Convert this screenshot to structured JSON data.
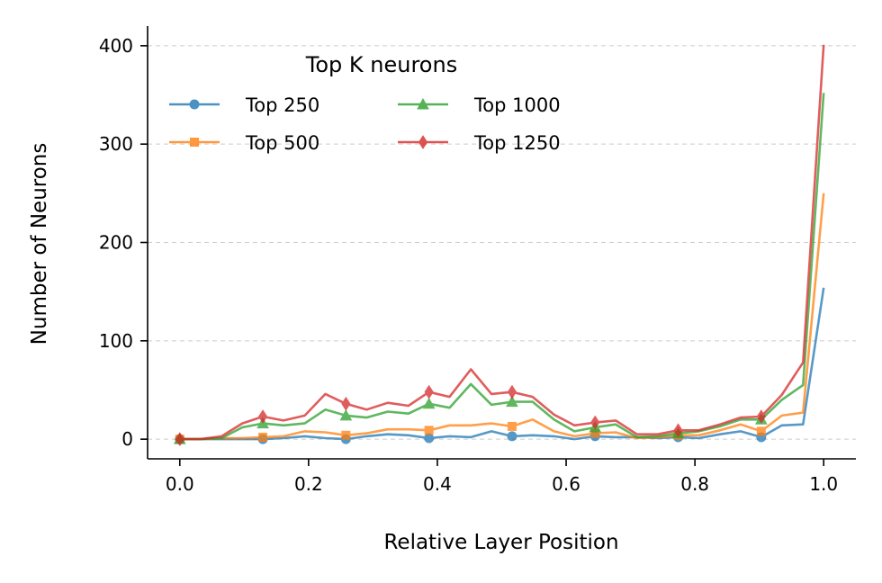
{
  "chart_data": {
    "type": "line",
    "xlabel": "Relative Layer Position",
    "ylabel": "Number of Neurons",
    "xlim": [
      -0.05,
      1.05
    ],
    "ylim": [
      -20,
      420
    ],
    "xticks": [
      0.0,
      0.2,
      0.4,
      0.6,
      0.8,
      1.0
    ],
    "xtick_labels": [
      "0.0",
      "0.2",
      "0.4",
      "0.6",
      "0.8",
      "1.0"
    ],
    "yticks": [
      0,
      100,
      200,
      300,
      400
    ],
    "ytick_labels": [
      "0",
      "100",
      "200",
      "300",
      "400"
    ],
    "grid": "horizontal dashed",
    "legend": {
      "title": "Top K neurons",
      "placement": "top-left",
      "columns": 2
    },
    "x": [
      0.0,
      0.032,
      0.065,
      0.097,
      0.129,
      0.161,
      0.194,
      0.226,
      0.258,
      0.29,
      0.323,
      0.355,
      0.387,
      0.419,
      0.452,
      0.484,
      0.516,
      0.548,
      0.581,
      0.613,
      0.645,
      0.677,
      0.71,
      0.742,
      0.774,
      0.806,
      0.839,
      0.871,
      0.903,
      0.935,
      0.968,
      1.0
    ],
    "series": [
      {
        "name": "Top 250",
        "color": "#1f77b4",
        "marker": "circle",
        "values": [
          0,
          0,
          0,
          0,
          0,
          1,
          3,
          1,
          0,
          3,
          5,
          4,
          1,
          3,
          2,
          8,
          3,
          4,
          3,
          0,
          3,
          2,
          2,
          1,
          2,
          1,
          5,
          8,
          2,
          14,
          15,
          154
        ]
      },
      {
        "name": "Top 500",
        "color": "#ff7f0e",
        "marker": "square",
        "values": [
          0,
          0,
          1,
          1,
          2,
          3,
          8,
          7,
          4,
          6,
          10,
          10,
          9,
          14,
          14,
          16,
          13,
          20,
          8,
          3,
          6,
          7,
          1,
          2,
          4,
          4,
          9,
          15,
          8,
          24,
          27,
          250
        ]
      },
      {
        "name": "Top 1000",
        "color": "#2ca02c",
        "marker": "triangle",
        "values": [
          0,
          0,
          1,
          12,
          16,
          14,
          16,
          30,
          24,
          22,
          28,
          26,
          36,
          32,
          56,
          35,
          38,
          38,
          20,
          8,
          12,
          15,
          2,
          3,
          6,
          8,
          13,
          20,
          20,
          40,
          55,
          352
        ]
      },
      {
        "name": "Top 1250",
        "color": "#d62728",
        "marker": "diamond",
        "values": [
          0,
          0,
          3,
          16,
          23,
          19,
          24,
          46,
          36,
          30,
          37,
          34,
          48,
          43,
          71,
          46,
          48,
          43,
          25,
          14,
          17,
          19,
          5,
          5,
          9,
          9,
          15,
          22,
          23,
          45,
          78,
          401
        ]
      }
    ]
  }
}
